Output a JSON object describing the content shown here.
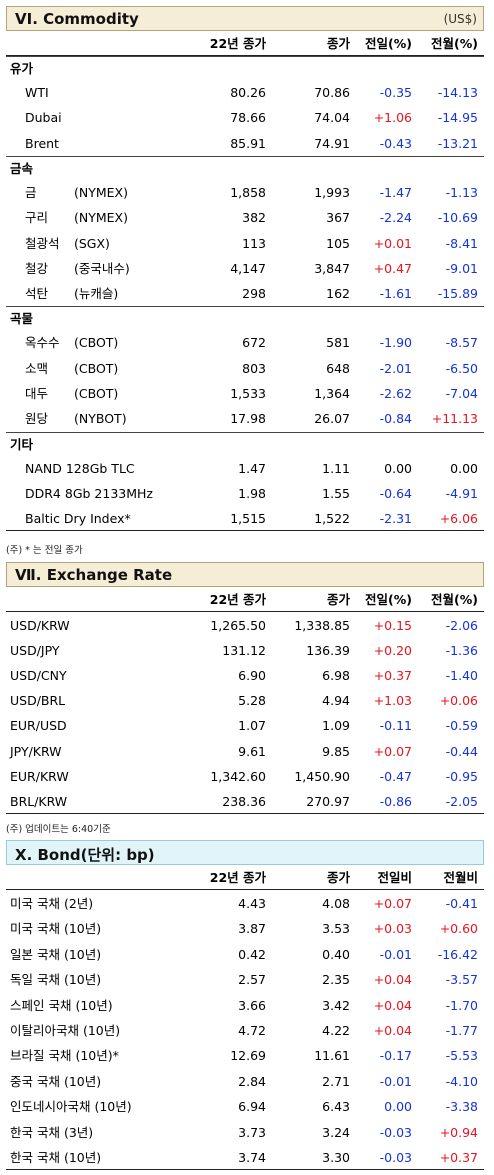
{
  "commodity": {
    "title": "VI. Commodity",
    "unit": "(US$)",
    "headers": [
      "22년 종가",
      "종가",
      "전일(%)",
      "전월(%)"
    ],
    "groups": [
      {
        "label": "유가",
        "rows": [
          {
            "name": "WTI",
            "sub": "",
            "v1": "80.26",
            "v2": "70.86",
            "d": "-0.35",
            "m": "-14.13"
          },
          {
            "name": "Dubai",
            "sub": "",
            "v1": "78.66",
            "v2": "74.04",
            "d": "+1.06",
            "m": "-14.95"
          },
          {
            "name": "Brent",
            "sub": "",
            "v1": "85.91",
            "v2": "74.91",
            "d": "-0.43",
            "m": "-13.21"
          }
        ]
      },
      {
        "label": "금속",
        "rows": [
          {
            "name": "금",
            "sub": "(NYMEX)",
            "v1": "1,858",
            "v2": "1,993",
            "d": "-1.47",
            "m": "-1.13"
          },
          {
            "name": "구리",
            "sub": "(NYMEX)",
            "v1": "382",
            "v2": "367",
            "d": "-2.24",
            "m": "-10.69"
          },
          {
            "name": "철광석",
            "sub": "(SGX)",
            "v1": "113",
            "v2": "105",
            "d": "+0.01",
            "m": "-8.41"
          },
          {
            "name": "철강",
            "sub": "(중국내수)",
            "v1": "4,147",
            "v2": "3,847",
            "d": "+0.47",
            "m": "-9.01"
          },
          {
            "name": "석탄",
            "sub": "(뉴캐슬)",
            "v1": "298",
            "v2": "162",
            "d": "-1.61",
            "m": "-15.89"
          }
        ]
      },
      {
        "label": "곡물",
        "rows": [
          {
            "name": "옥수수",
            "sub": "(CBOT)",
            "v1": "672",
            "v2": "581",
            "d": "-1.90",
            "m": "-8.57"
          },
          {
            "name": "소맥",
            "sub": "(CBOT)",
            "v1": "803",
            "v2": "648",
            "d": "-2.01",
            "m": "-6.50"
          },
          {
            "name": "대두",
            "sub": "(CBOT)",
            "v1": "1,533",
            "v2": "1,364",
            "d": "-2.62",
            "m": "-7.04"
          },
          {
            "name": "원당",
            "sub": "(NYBOT)",
            "v1": "17.98",
            "v2": "26.07",
            "d": "-0.84",
            "m": "+11.13"
          }
        ]
      },
      {
        "label": "기타",
        "rows": [
          {
            "name": "NAND 128Gb TLC",
            "sub": "",
            "v1": "1.47",
            "v2": "1.11",
            "d": "0.00",
            "m": "0.00"
          },
          {
            "name": "DDR4 8Gb 2133MHz",
            "sub": "",
            "v1": "1.98",
            "v2": "1.55",
            "d": "-0.64",
            "m": "-4.91"
          },
          {
            "name": "Baltic Dry Index*",
            "sub": "",
            "v1": "1,515",
            "v2": "1,522",
            "d": "-2.31",
            "m": "+6.06"
          }
        ]
      }
    ],
    "note": "(주) * 는 전일 종가"
  },
  "exchange": {
    "title": "Ⅶ. Exchange Rate",
    "headers": [
      "22년 종가",
      "종가",
      "전일(%)",
      "전월(%)"
    ],
    "rows": [
      {
        "name": "USD/KRW",
        "v1": "1,265.50",
        "v2": "1,338.85",
        "d": "+0.15",
        "m": "-2.06"
      },
      {
        "name": "USD/JPY",
        "v1": "131.12",
        "v2": "136.39",
        "d": "+0.20",
        "m": "-1.36"
      },
      {
        "name": "USD/CNY",
        "v1": "6.90",
        "v2": "6.98",
        "d": "+0.37",
        "m": "-1.40"
      },
      {
        "name": "USD/BRL",
        "v1": "5.28",
        "v2": "4.94",
        "d": "+1.03",
        "m": "+0.06"
      },
      {
        "name": "EUR/USD",
        "v1": "1.07",
        "v2": "1.09",
        "d": "-0.11",
        "m": "-0.59"
      },
      {
        "name": "JPY/KRW",
        "v1": "9.61",
        "v2": "9.85",
        "d": "+0.07",
        "m": "-0.44"
      },
      {
        "name": "EUR/KRW",
        "v1": "1,342.60",
        "v2": "1,450.90",
        "d": "-0.47",
        "m": "-0.95"
      },
      {
        "name": "BRL/KRW",
        "v1": "238.36",
        "v2": "270.97",
        "d": "-0.86",
        "m": "-2.05"
      }
    ],
    "note": "(주) 업데이트는 6:40기준"
  },
  "bond": {
    "title": "X. Bond(단위: bp)",
    "headers": [
      "22년 종가",
      "종가",
      "전일비",
      "전월비"
    ],
    "rows": [
      {
        "name": "미국 국채 (2년)",
        "v1": "4.43",
        "v2": "4.08",
        "d": "+0.07",
        "m": "-0.41"
      },
      {
        "name": "미국 국채 (10년)",
        "v1": "3.87",
        "v2": "3.53",
        "d": "+0.03",
        "m": "+0.60"
      },
      {
        "name": "일본 국채 (10년)",
        "v1": "0.42",
        "v2": "0.40",
        "d": "-0.01",
        "m": "-16.42"
      },
      {
        "name": "독일 국채 (10년)",
        "v1": "2.57",
        "v2": "2.35",
        "d": "+0.04",
        "m": "-3.57"
      },
      {
        "name": "스페인 국채 (10년)",
        "v1": "3.66",
        "v2": "3.42",
        "d": "+0.04",
        "m": "-1.70"
      },
      {
        "name": "이탈리아국채 (10년)",
        "v1": "4.72",
        "v2": "4.22",
        "d": "+0.04",
        "m": "-1.77"
      },
      {
        "name": "브라질 국채 (10년)*",
        "v1": "12.69",
        "v2": "11.61",
        "d": "-0.17",
        "m": "-5.53"
      },
      {
        "name": "중국 국채 (10년)",
        "v1": "2.84",
        "v2": "2.71",
        "d": "-0.01",
        "m": "-4.10"
      },
      {
        "name": "인도네시아국채 (10년)",
        "v1": "6.94",
        "v2": "6.43",
        "d": "0.00",
        "m": "-3.38"
      },
      {
        "name": "한국 국채 (3년)",
        "v1": "3.73",
        "v2": "3.24",
        "d": "-0.03",
        "m": "+0.94"
      },
      {
        "name": "한국 국채 (10년)",
        "v1": "3.74",
        "v2": "3.30",
        "d": "-0.03",
        "m": "+0.37"
      }
    ]
  },
  "colors": {
    "positive": "#e8141e",
    "negative": "#1433d8",
    "commodity_header_bg": "#f5edd5",
    "bond_header_bg": "#e1f5f9"
  }
}
